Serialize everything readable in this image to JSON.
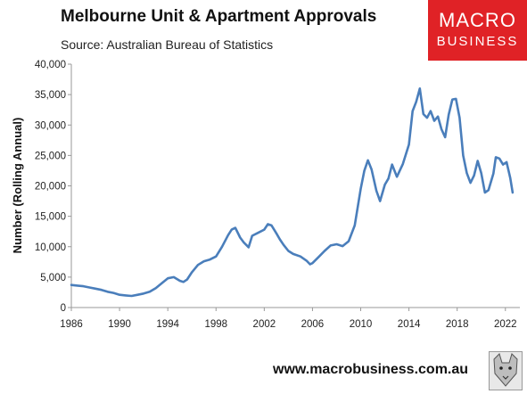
{
  "header": {
    "title": "Melbourne Unit & Apartment Approvals",
    "subtitle": "Source: Australian Bureau of Statistics"
  },
  "logo": {
    "line1": "MACRO",
    "line2": "BUSINESS",
    "color": "#e02226"
  },
  "footer": {
    "url": "www.macrobusiness.com.au"
  },
  "colors": {
    "series": "#4a7ebb",
    "axis": "#999999"
  },
  "chart_data": {
    "type": "line",
    "title": "Melbourne Unit & Apartment Approvals",
    "subtitle": "Source: Australian Bureau of Statistics",
    "ylabel": "Number (Rolling Annual)",
    "xlabel": "",
    "ylim": [
      0,
      40000
    ],
    "xlim": [
      1986,
      2023.2
    ],
    "yticks": [
      0,
      5000,
      10000,
      15000,
      20000,
      25000,
      30000,
      35000,
      40000
    ],
    "ytick_labels": [
      "0",
      "5,000",
      "10,000",
      "15,000",
      "20,000",
      "25,000",
      "30,000",
      "35,000",
      "40,000"
    ],
    "xticks": [
      1986,
      1990,
      1994,
      1998,
      2002,
      2006,
      2010,
      2014,
      2018,
      2022
    ],
    "xtick_labels": [
      "1986",
      "1990",
      "1994",
      "1998",
      "2002",
      "2006",
      "2010",
      "2014",
      "2018",
      "2022"
    ],
    "grid": false,
    "legend": "none",
    "series": [
      {
        "x": [
          1986,
          1986.5,
          1987,
          1987.5,
          1988,
          1988.5,
          1989,
          1989.5,
          1990,
          1990.5,
          1991,
          1991.5,
          1992,
          1992.5,
          1993,
          1993.5,
          1994,
          1994.5,
          1995,
          1995.3,
          1995.6,
          1996,
          1996.5,
          1997,
          1997.5,
          1998,
          1998.5,
          1999,
          1999.3,
          1999.6,
          2000,
          2000.3,
          2000.7,
          2001,
          2001.5,
          2002,
          2002.3,
          2002.6,
          2003,
          2003.3,
          2003.6,
          2004,
          2004.4,
          2005,
          2005.5,
          2005.8,
          2006,
          2006.5,
          2007,
          2007.5,
          2008,
          2008.5,
          2009,
          2009.5,
          2010,
          2010.3,
          2010.6,
          2010.9,
          2011.3,
          2011.6,
          2012,
          2012.3,
          2012.6,
          2013,
          2013.5,
          2014,
          2014.3,
          2014.6,
          2014.9,
          2015.2,
          2015.5,
          2015.8,
          2016.1,
          2016.4,
          2016.7,
          2017,
          2017.3,
          2017.6,
          2017.9,
          2018.2,
          2018.5,
          2018.8,
          2019.1,
          2019.4,
          2019.7,
          2020,
          2020.3,
          2020.6,
          2021,
          2021.2,
          2021.5,
          2021.8,
          2022.1,
          2022.4,
          2022.6
        ],
        "values": [
          3700,
          3600,
          3500,
          3300,
          3100,
          2900,
          2600,
          2400,
          2100,
          2000,
          1900,
          2100,
          2300,
          2600,
          3200,
          4000,
          4800,
          5000,
          4400,
          4200,
          4600,
          5800,
          7000,
          7600,
          7900,
          8400,
          10000,
          11900,
          12800,
          13100,
          11500,
          10700,
          9900,
          11800,
          12300,
          12800,
          13700,
          13500,
          12200,
          11200,
          10300,
          9300,
          8800,
          8400,
          7700,
          7100,
          7300,
          8300,
          9300,
          10200,
          10400,
          10100,
          10900,
          13500,
          19500,
          22500,
          24200,
          22700,
          19200,
          17500,
          20200,
          21200,
          23500,
          21500,
          23600,
          26800,
          32300,
          33800,
          36000,
          31800,
          31200,
          32300,
          30700,
          31400,
          29300,
          28000,
          31700,
          34200,
          34300,
          31200,
          25000,
          22100,
          20500,
          21700,
          24100,
          22100,
          18900,
          19300,
          22000,
          24700,
          24500,
          23500,
          23900,
          21300,
          18900
        ]
      }
    ]
  }
}
